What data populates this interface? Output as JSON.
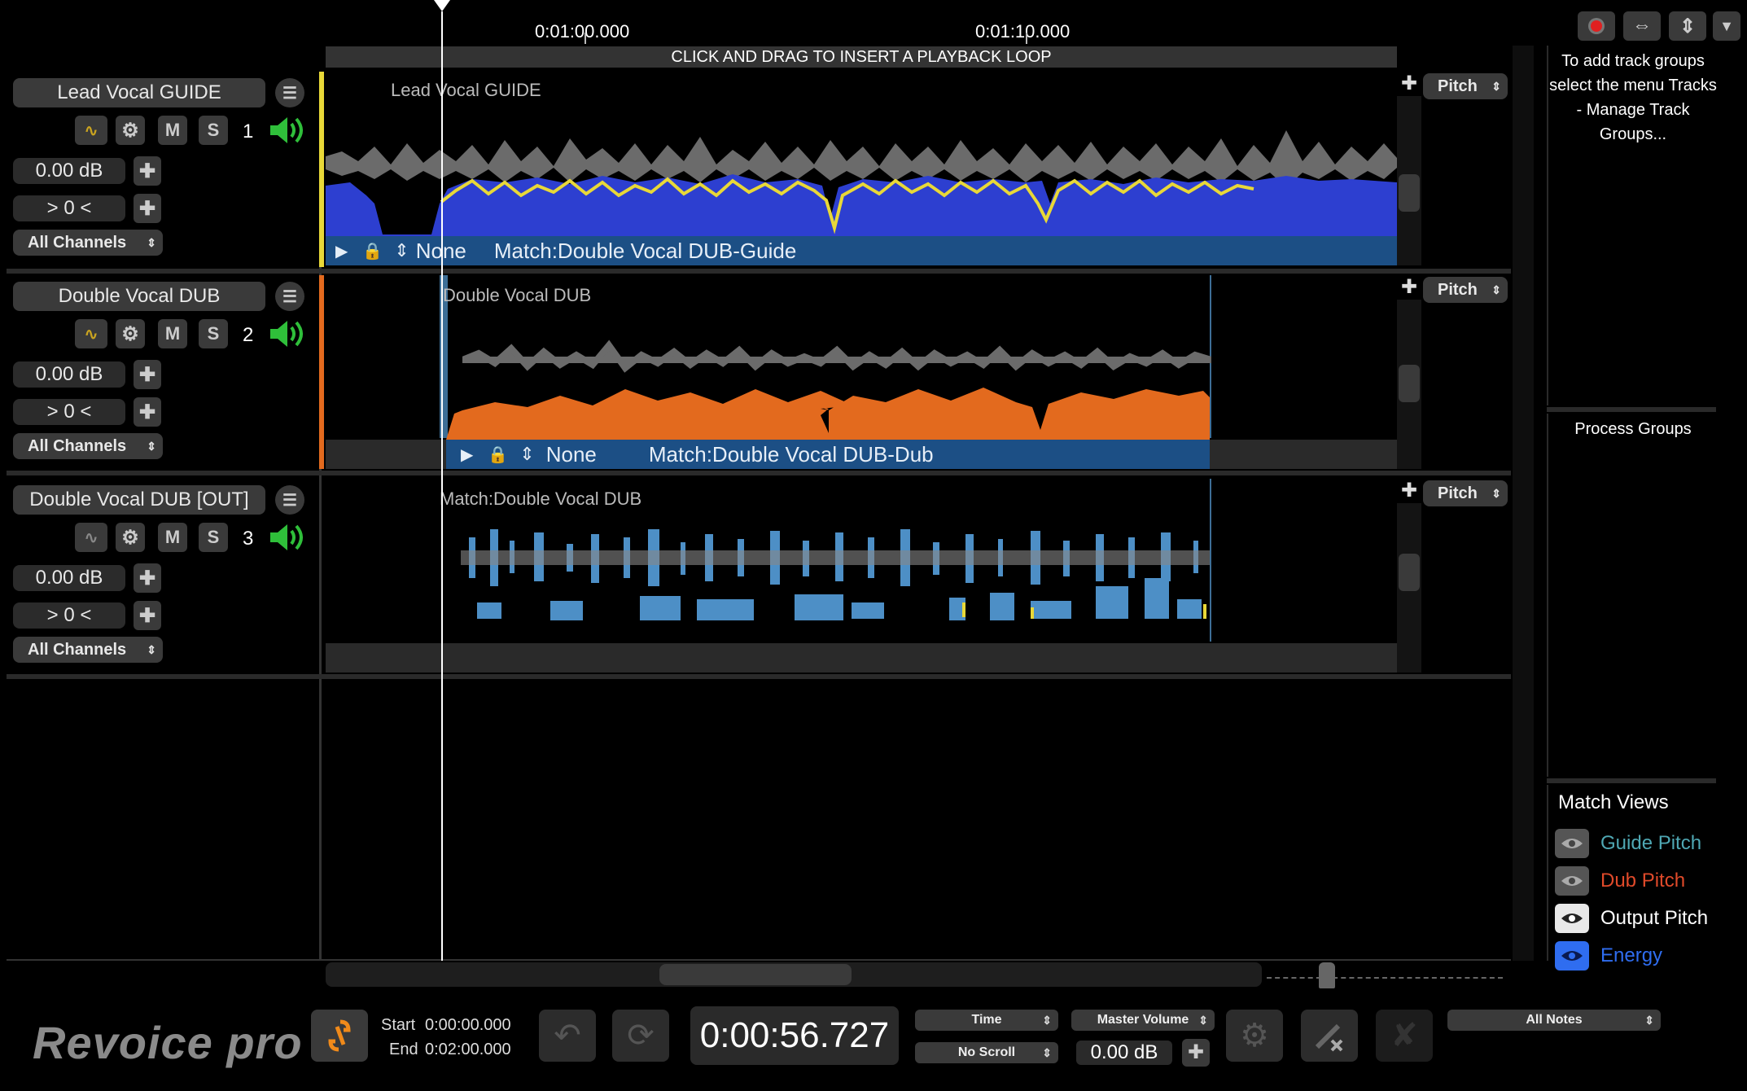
{
  "ruler": {
    "time_a": "0:01:00.000",
    "time_b": "0:01:10.000",
    "loop_hint": "CLICK AND DRAG TO INSERT A PLAYBACK LOOP"
  },
  "tracks": [
    {
      "name": "Lead Vocal GUIDE",
      "number": "1",
      "gain": "0.00 dB",
      "pan": "> 0 <",
      "channels": "All Channels",
      "mute_label": "M",
      "solo_label": "S",
      "clip_label": "Lead Vocal GUIDE",
      "match_none": "None",
      "match_label": "Match:Double Vocal DUB-Guide",
      "view_select": "Pitch",
      "color": "#e8d838"
    },
    {
      "name": "Double Vocal DUB",
      "number": "2",
      "gain": "0.00 dB",
      "pan": "> 0 <",
      "channels": "All Channels",
      "mute_label": "M",
      "solo_label": "S",
      "clip_label": "Double Vocal DUB",
      "match_none": "None",
      "match_label": "Match:Double Vocal DUB-Dub",
      "view_select": "Pitch",
      "color": "#e36a1e"
    },
    {
      "name": "Double Vocal DUB [OUT]",
      "number": "3",
      "gain": "0.00 dB",
      "pan": "> 0 <",
      "channels": "All Channels",
      "mute_label": "M",
      "solo_label": "S",
      "clip_label": "Match:Double Vocal DUB",
      "view_select": "Pitch",
      "color": "#4d8fc6"
    }
  ],
  "sidebar": {
    "track_groups_hint": "To add track groups select the menu Tracks - Manage Track Groups...",
    "process_groups": "Process Groups",
    "match_views_title": "Match Views",
    "match_views": [
      {
        "label": "Guide Pitch",
        "color": "#4fa8b4"
      },
      {
        "label": "Dub Pitch",
        "color": "#e04a2a"
      },
      {
        "label": "Output Pitch",
        "color": "#ffffff"
      },
      {
        "label": "Energy",
        "color": "#2f6df0"
      }
    ]
  },
  "transport": {
    "logo": "Revoice pro",
    "start_label": "Start",
    "start_value": "0:00:00.000",
    "end_label": "End",
    "end_value": "0:02:00.000",
    "time_display": "0:00:56.727",
    "time_select": "Time",
    "scroll_select": "No Scroll",
    "volume_select": "Master Volume",
    "master_gain": "0.00 dB",
    "notes_select": "All Notes"
  }
}
